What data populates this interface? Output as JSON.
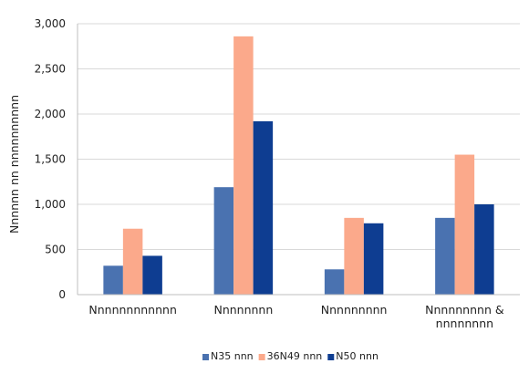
{
  "chart_data": {
    "type": "bar",
    "title": "",
    "xlabel": "",
    "ylabel": "Nnnnnn nn nnnnnnnnnn",
    "ylim": [
      0,
      3000
    ],
    "yticks": [
      0,
      500,
      1000,
      1500,
      2000,
      2500,
      3000
    ],
    "ytick_labels": [
      "0",
      "500",
      "1,000",
      "1,500",
      "2,000",
      "2,500",
      "3,000"
    ],
    "grid": true,
    "legend_position": "bottom",
    "categories": [
      [
        "Nnnnnnnnnnnn"
      ],
      [
        "Nnnnnnnn"
      ],
      [
        "Nnnnnnnnn"
      ],
      [
        "Nnnnnnnnn &",
        "nnnnnnnn"
      ]
    ],
    "series": [
      {
        "name": "N35 nnn",
        "color": "#4a72b0",
        "values": [
          320,
          1190,
          280,
          850
        ]
      },
      {
        "name": "36N49 nnn",
        "color": "#fba98b",
        "values": [
          730,
          2860,
          850,
          1550
        ]
      },
      {
        "name": "N50 nnn",
        "color": "#0e3d91",
        "values": [
          430,
          1920,
          790,
          1000
        ]
      }
    ]
  }
}
